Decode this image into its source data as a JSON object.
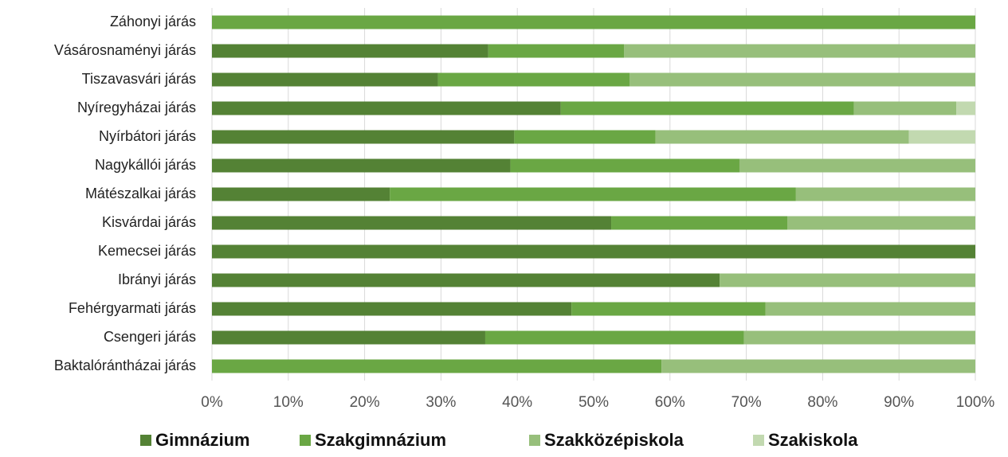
{
  "chart_data": {
    "type": "stacked_bar_horizontal",
    "categories": [
      "Záhonyi járás",
      "Vásárosnaményi járás",
      "Tiszavasvári járás",
      "Nyíregyházai járás",
      "Nyírbátori járás",
      "Nagykállói járás",
      "Mátészalkai járás",
      "Kisvárdai járás",
      "Kemecsei járás",
      "Ibrányi járás",
      "Fehérgyarmati járás",
      "Csengeri járás",
      "Baktalórántházai járás"
    ],
    "series": [
      {
        "name": "Gimnázium",
        "color": "#548235",
        "values": [
          0,
          36.2,
          29.6,
          45.7,
          39.6,
          39.1,
          23.3,
          52.3,
          100,
          66.5,
          47.1,
          35.8,
          0
        ]
      },
      {
        "name": "Szakgimnázium",
        "color": "#6aa744",
        "values": [
          100,
          17.8,
          25.1,
          38.4,
          18.5,
          30.0,
          53.2,
          23.1,
          0,
          0,
          25.4,
          33.9,
          58.9
        ]
      },
      {
        "name": "Szakközépiskola",
        "color": "#97bf7b",
        "values": [
          0,
          46.0,
          45.3,
          13.4,
          33.2,
          30.9,
          23.5,
          24.6,
          0,
          33.5,
          27.5,
          30.3,
          41.1
        ]
      },
      {
        "name": "Szakiskola",
        "color": "#c2d9b0",
        "values": [
          0,
          0,
          0,
          2.5,
          8.7,
          0,
          0,
          0,
          0,
          0,
          0,
          0,
          0
        ]
      }
    ],
    "xlim": [
      0,
      100
    ],
    "xticks": [
      {
        "value": 0,
        "label": "0%"
      },
      {
        "value": 10,
        "label": "10%"
      },
      {
        "value": 20,
        "label": "20%"
      },
      {
        "value": 30,
        "label": "30%"
      },
      {
        "value": 40,
        "label": "40%"
      },
      {
        "value": 50,
        "label": "50%"
      },
      {
        "value": 60,
        "label": "60%"
      },
      {
        "value": 70,
        "label": "70%"
      },
      {
        "value": 80,
        "label": "80%"
      },
      {
        "value": 90,
        "label": "90%"
      },
      {
        "value": 100,
        "label": "100%"
      }
    ],
    "grid": true,
    "legend": "bottom"
  }
}
